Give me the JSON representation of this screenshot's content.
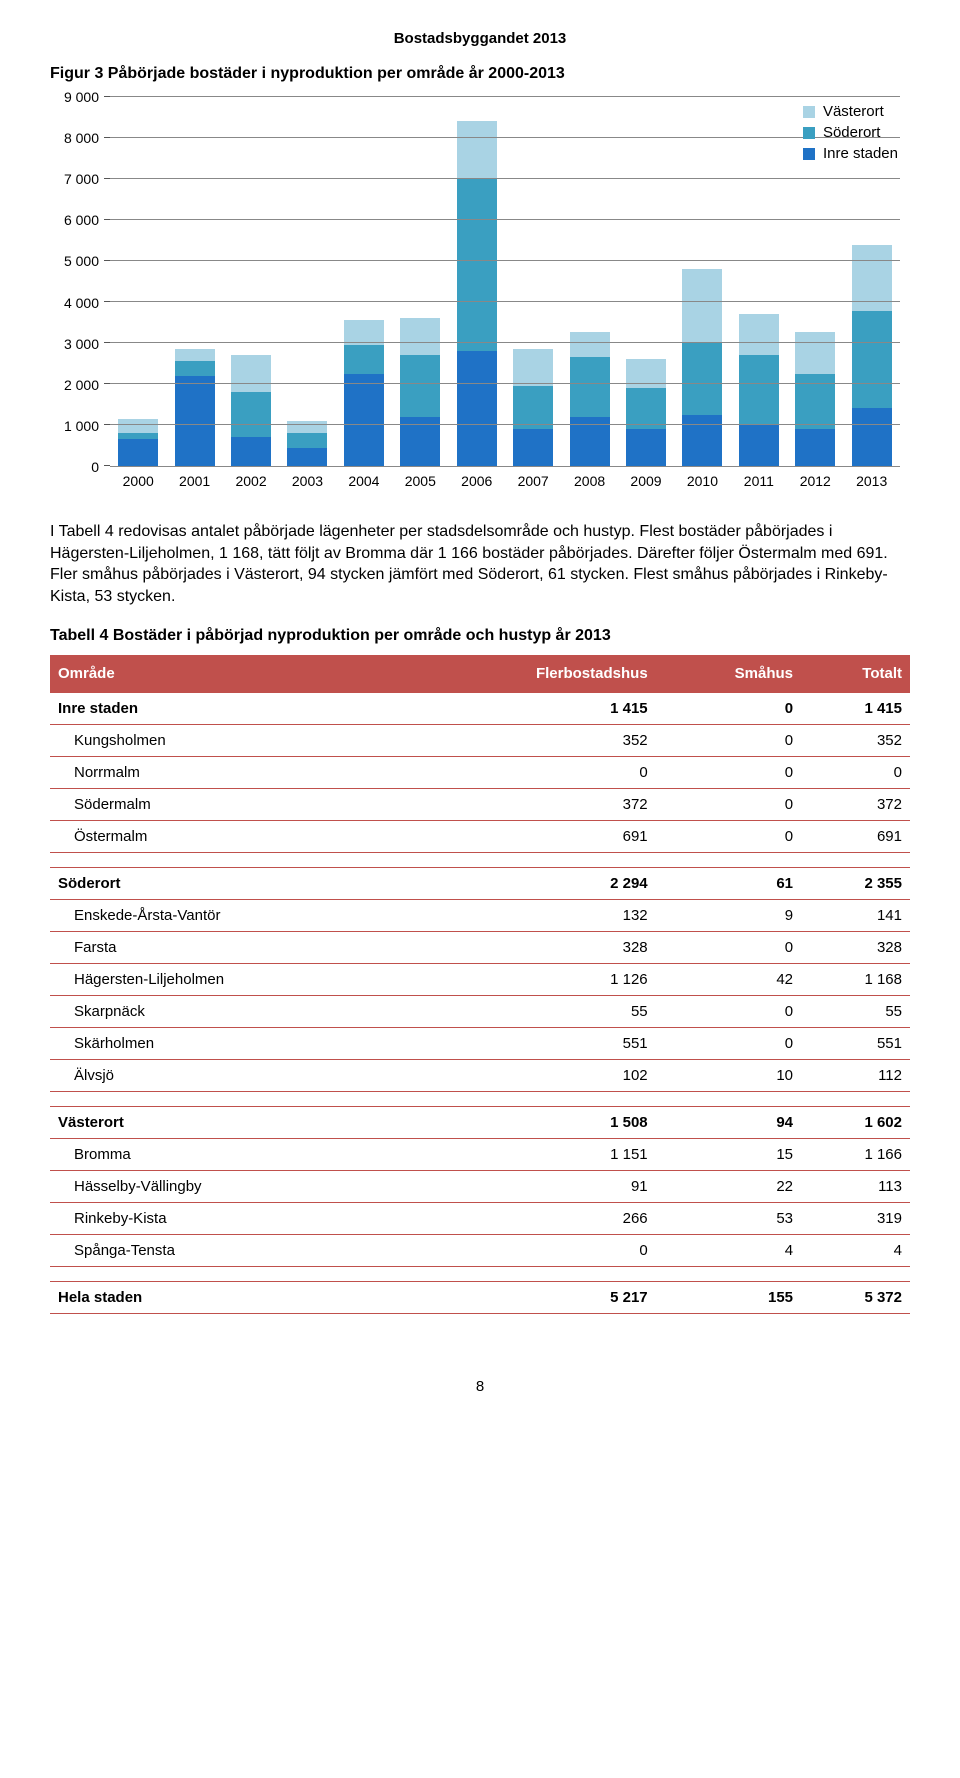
{
  "colors": {
    "inre": "#1f72c6",
    "soderort": "#3a9fc1",
    "vasterort": "#a9d3e4",
    "grid": "#888888",
    "table_accent": "#c0504c"
  },
  "doc_header": "Bostadsbyggandet 2013",
  "figure_title": "Figur 3 Påbörjade bostäder i nyproduktion per område år 2000-2013",
  "chart": {
    "ylim": [
      0,
      9000
    ],
    "ytick_step": 1000,
    "ytick_labels": [
      "0",
      "1 000",
      "2 000",
      "3 000",
      "4 000",
      "5 000",
      "6 000",
      "7 000",
      "8 000",
      "9 000"
    ],
    "categories": [
      "2000",
      "2001",
      "2002",
      "2003",
      "2004",
      "2005",
      "2006",
      "2007",
      "2008",
      "2009",
      "2010",
      "2011",
      "2012",
      "2013"
    ],
    "legend": [
      {
        "label": "Västerort",
        "color_key": "vasterort"
      },
      {
        "label": "Söderort",
        "color_key": "soderort"
      },
      {
        "label": "Inre staden",
        "color_key": "inre"
      }
    ],
    "series_order": [
      "inre",
      "soderort",
      "vasterort"
    ],
    "data": [
      {
        "inre": 650,
        "soderort": 150,
        "vasterort": 350
      },
      {
        "inre": 2200,
        "soderort": 350,
        "vasterort": 300
      },
      {
        "inre": 700,
        "soderort": 1100,
        "vasterort": 900
      },
      {
        "inre": 450,
        "soderort": 350,
        "vasterort": 300
      },
      {
        "inre": 2250,
        "soderort": 700,
        "vasterort": 600
      },
      {
        "inre": 1200,
        "soderort": 1500,
        "vasterort": 900
      },
      {
        "inre": 2800,
        "soderort": 4200,
        "vasterort": 1400
      },
      {
        "inre": 900,
        "soderort": 1050,
        "vasterort": 900
      },
      {
        "inre": 1200,
        "soderort": 1450,
        "vasterort": 600
      },
      {
        "inre": 900,
        "soderort": 1000,
        "vasterort": 700
      },
      {
        "inre": 1250,
        "soderort": 1750,
        "vasterort": 1800
      },
      {
        "inre": 1000,
        "soderort": 1700,
        "vasterort": 1000
      },
      {
        "inre": 900,
        "soderort": 1350,
        "vasterort": 1000
      },
      {
        "inre": 1415,
        "soderort": 2355,
        "vasterort": 1602
      }
    ]
  },
  "paragraph": "I Tabell 4 redovisas antalet påbörjade lägenheter per stadsdelsområde och hustyp. Flest bostäder påbörjades i Hägersten-Liljeholmen, 1 168, tätt följt av Bromma där 1 166 bostäder påbörjades. Därefter följer Östermalm med 691. Fler småhus påbörjades i Västerort, 94 stycken jämfört med Söderort, 61 stycken. Flest småhus påbörjades i Rinkeby-Kista, 53 stycken.",
  "table_title": "Tabell 4 Bostäder i påbörjad nyproduktion per område och hustyp år 2013",
  "table": {
    "columns": [
      "Område",
      "Flerbostadshus",
      "Småhus",
      "Totalt"
    ],
    "blocks": [
      {
        "header": {
          "name": "Inre staden",
          "v": [
            "1 415",
            "0",
            "1 415"
          ]
        },
        "rows": [
          {
            "name": "Kungsholmen",
            "v": [
              "352",
              "0",
              "352"
            ]
          },
          {
            "name": "Norrmalm",
            "v": [
              "0",
              "0",
              "0"
            ]
          },
          {
            "name": "Södermalm",
            "v": [
              "372",
              "0",
              "372"
            ]
          },
          {
            "name": "Östermalm",
            "v": [
              "691",
              "0",
              "691"
            ]
          }
        ]
      },
      {
        "header": {
          "name": "Söderort",
          "v": [
            "2 294",
            "61",
            "2 355"
          ]
        },
        "rows": [
          {
            "name": "Enskede-Årsta-Vantör",
            "v": [
              "132",
              "9",
              "141"
            ]
          },
          {
            "name": "Farsta",
            "v": [
              "328",
              "0",
              "328"
            ]
          },
          {
            "name": "Hägersten-Liljeholmen",
            "v": [
              "1 126",
              "42",
              "1 168"
            ]
          },
          {
            "name": "Skarpnäck",
            "v": [
              "55",
              "0",
              "55"
            ]
          },
          {
            "name": "Skärholmen",
            "v": [
              "551",
              "0",
              "551"
            ]
          },
          {
            "name": "Älvsjö",
            "v": [
              "102",
              "10",
              "112"
            ]
          }
        ]
      },
      {
        "header": {
          "name": "Västerort",
          "v": [
            "1 508",
            "94",
            "1 602"
          ]
        },
        "rows": [
          {
            "name": "Bromma",
            "v": [
              "1 151",
              "15",
              "1 166"
            ]
          },
          {
            "name": "Hässelby-Vällingby",
            "v": [
              "91",
              "22",
              "113"
            ]
          },
          {
            "name": "Rinkeby-Kista",
            "v": [
              "266",
              "53",
              "319"
            ]
          },
          {
            "name": "Spånga-Tensta",
            "v": [
              "0",
              "4",
              "4"
            ]
          }
        ]
      }
    ],
    "total": {
      "name": "Hela staden",
      "v": [
        "5 217",
        "155",
        "5 372"
      ]
    }
  },
  "page_number": "8"
}
